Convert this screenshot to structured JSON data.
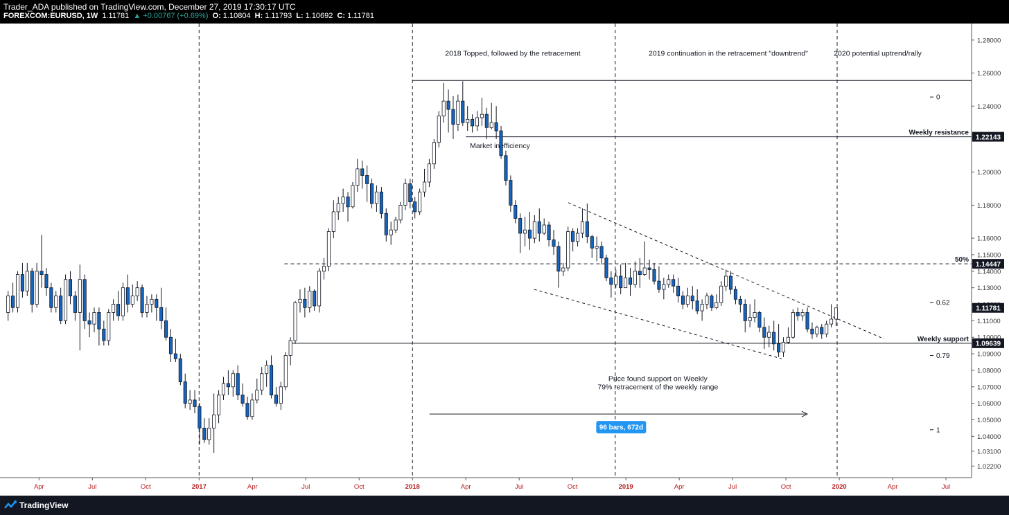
{
  "header": {
    "publisher_line": "Trader_ADA published on TradingView.com, December 27, 2019 17:30:17 UTC",
    "symbol": "FOREXCOM:EURUSD, 1W",
    "last": "1.11781",
    "change": "▲ +0.00767 (+0.69%)",
    "o_label": "O:",
    "o_value": "1.10804",
    "h_label": "H:",
    "h_value": "1.11793",
    "l_label": "L:",
    "l_value": "1.10692",
    "c_label": "C:",
    "c_value": "1.11781"
  },
  "footer": {
    "brand": "TradingView"
  },
  "chart_data": {
    "type": "candlestick",
    "symbol": "FOREXCOM:EURUSD",
    "timeframe": "1W",
    "ylim": [
      1.015,
      1.29
    ],
    "y_ticks": [
      "1.02200",
      "1.03100",
      "1.04000",
      "1.05000",
      "1.06000",
      "1.07000",
      "1.08000",
      "1.09000",
      "1.10000",
      "1.11000",
      "1.12000",
      "1.13000",
      "1.14000",
      "1.15000",
      "1.16000",
      "1.18000",
      "1.20000",
      "1.22000",
      "1.24000",
      "1.26000",
      "1.28000"
    ],
    "x_ticks": [
      {
        "label": "Apr",
        "t": 2016.25,
        "bold": false
      },
      {
        "label": "Jul",
        "t": 2016.5,
        "bold": false
      },
      {
        "label": "Oct",
        "t": 2016.75,
        "bold": false
      },
      {
        "label": "2017",
        "t": 2017.0,
        "bold": true
      },
      {
        "label": "Apr",
        "t": 2017.25,
        "bold": false
      },
      {
        "label": "Jul",
        "t": 2017.5,
        "bold": false
      },
      {
        "label": "Oct",
        "t": 2017.75,
        "bold": false
      },
      {
        "label": "2018",
        "t": 2018.0,
        "bold": true
      },
      {
        "label": "Apr",
        "t": 2018.25,
        "bold": false
      },
      {
        "label": "Jul",
        "t": 2018.5,
        "bold": false
      },
      {
        "label": "Oct",
        "t": 2018.75,
        "bold": false
      },
      {
        "label": "2019",
        "t": 2019.0,
        "bold": true
      },
      {
        "label": "Apr",
        "t": 2019.25,
        "bold": false
      },
      {
        "label": "Jul",
        "t": 2019.5,
        "bold": false
      },
      {
        "label": "Oct",
        "t": 2019.75,
        "bold": false
      },
      {
        "label": "2020",
        "t": 2020.0,
        "bold": true
      },
      {
        "label": "Apr",
        "t": 2020.25,
        "bold": false
      },
      {
        "label": "Jul",
        "t": 2020.5,
        "bold": false
      }
    ],
    "price_badges": [
      {
        "label": "1.22143",
        "value": 1.22143
      },
      {
        "label": "1.14447",
        "value": 1.14447
      },
      {
        "label": "1.11781",
        "value": 1.11781
      },
      {
        "label": "1.09639",
        "value": 1.09639
      }
    ],
    "horizontal_levels": [
      {
        "value": 1.2555,
        "t_from": 2018.0,
        "t_to": 2020.5,
        "style": "solid"
      },
      {
        "value": 1.22143,
        "t_from": 2018.25,
        "t_to": 2020.5,
        "style": "solid",
        "label": "Weekly resistance"
      },
      {
        "value": 1.14447,
        "t_from": 2017.4,
        "t_to": 2020.5,
        "style": "dashed",
        "label": "50%"
      },
      {
        "value": 1.09639,
        "t_from": 2017.43,
        "t_to": 2020.5,
        "style": "solid",
        "label": "Weekly support"
      }
    ],
    "vertical_markers": [
      2017.0,
      2018.0,
      2018.95,
      2019.99
    ],
    "channel_lines": [
      {
        "from": [
          2018.73,
          1.1815
        ],
        "to": [
          2020.21,
          1.099
        ]
      },
      {
        "from": [
          2018.57,
          1.129
        ],
        "to": [
          2019.73,
          1.087
        ]
      }
    ],
    "fib_labels": [
      {
        "label": "0",
        "value": 1.2455
      },
      {
        "label": "0.62",
        "value": 1.121
      },
      {
        "label": "0.79",
        "value": 1.089
      },
      {
        "label": "1",
        "value": 1.044
      }
    ],
    "annotations": [
      {
        "text": "2018 Topped, followed by the retracement",
        "t": 2018.47,
        "value": 1.2705
      },
      {
        "text": "2019 continuation in the retracement \"downtrend\"",
        "t": 2019.48,
        "value": 1.2705
      },
      {
        "text": "2020 potential uptrend/rally",
        "t": 2020.18,
        "value": 1.2705
      },
      {
        "text": "Market inefficiency",
        "t": 2018.41,
        "value": 1.2145
      },
      {
        "text": "Price found support on Weekly",
        "t": 2019.15,
        "value": 1.0735
      },
      {
        "text": "79% retracement of the weekly range",
        "t": 2019.15,
        "value": 1.0685
      }
    ],
    "measure": {
      "from": [
        2018.08,
        1.0535
      ],
      "to": [
        2019.85,
        1.0535
      ],
      "label": "96 bars, 672d"
    },
    "candles": [
      [
        1.115,
        1.125,
        1.11,
        1.128
      ],
      [
        1.125,
        1.118,
        1.115,
        1.133
      ],
      [
        1.118,
        1.138,
        1.115,
        1.14
      ],
      [
        1.138,
        1.128,
        1.124,
        1.145
      ],
      [
        1.128,
        1.14,
        1.125,
        1.145
      ],
      [
        1.14,
        1.12,
        1.115,
        1.142
      ],
      [
        1.12,
        1.14,
        1.118,
        1.145
      ],
      [
        1.14,
        1.138,
        1.13,
        1.162
      ],
      [
        1.138,
        1.13,
        1.125,
        1.142
      ],
      [
        1.13,
        1.118,
        1.115,
        1.133
      ],
      [
        1.118,
        1.125,
        1.115,
        1.128
      ],
      [
        1.125,
        1.11,
        1.108,
        1.13
      ],
      [
        1.11,
        1.135,
        1.108,
        1.138
      ],
      [
        1.135,
        1.125,
        1.12,
        1.14
      ],
      [
        1.125,
        1.115,
        1.11,
        1.128
      ],
      [
        1.115,
        1.135,
        1.092,
        1.144
      ],
      [
        1.135,
        1.11,
        1.105,
        1.138
      ],
      [
        1.11,
        1.108,
        1.1,
        1.115
      ],
      [
        1.108,
        1.115,
        1.103,
        1.118
      ],
      [
        1.115,
        1.105,
        1.095,
        1.118
      ],
      [
        1.105,
        1.098,
        1.095,
        1.11
      ],
      [
        1.098,
        1.115,
        1.095,
        1.117
      ],
      [
        1.115,
        1.12,
        1.11,
        1.123
      ],
      [
        1.12,
        1.113,
        1.11,
        1.128
      ],
      [
        1.113,
        1.13,
        1.11,
        1.133
      ],
      [
        1.13,
        1.12,
        1.115,
        1.138
      ],
      [
        1.12,
        1.125,
        1.118,
        1.132
      ],
      [
        1.125,
        1.13,
        1.122,
        1.134
      ],
      [
        1.13,
        1.115,
        1.112,
        1.132
      ],
      [
        1.115,
        1.12,
        1.112,
        1.125
      ],
      [
        1.12,
        1.123,
        1.115,
        1.126
      ],
      [
        1.123,
        1.118,
        1.11,
        1.126
      ],
      [
        1.118,
        1.11,
        1.105,
        1.13
      ],
      [
        1.11,
        1.1,
        1.098,
        1.118
      ],
      [
        1.1,
        1.09,
        1.085,
        1.105
      ],
      [
        1.09,
        1.087,
        1.085,
        1.099
      ],
      [
        1.087,
        1.073,
        1.071,
        1.09
      ],
      [
        1.073,
        1.06,
        1.057,
        1.078
      ],
      [
        1.06,
        1.062,
        1.056,
        1.068
      ],
      [
        1.062,
        1.058,
        1.054,
        1.068
      ],
      [
        1.058,
        1.045,
        1.035,
        1.06
      ],
      [
        1.045,
        1.038,
        1.036,
        1.051
      ],
      [
        1.038,
        1.045,
        1.035,
        1.051
      ],
      [
        1.045,
        1.053,
        1.03,
        1.066
      ],
      [
        1.053,
        1.065,
        1.048,
        1.068
      ],
      [
        1.065,
        1.072,
        1.062,
        1.076
      ],
      [
        1.072,
        1.07,
        1.065,
        1.08
      ],
      [
        1.07,
        1.078,
        1.064,
        1.08
      ],
      [
        1.078,
        1.065,
        1.062,
        1.083
      ],
      [
        1.065,
        1.06,
        1.058,
        1.072
      ],
      [
        1.06,
        1.052,
        1.05,
        1.064
      ],
      [
        1.052,
        1.062,
        1.05,
        1.066
      ],
      [
        1.062,
        1.068,
        1.06,
        1.075
      ],
      [
        1.068,
        1.078,
        1.065,
        1.082
      ],
      [
        1.078,
        1.083,
        1.07,
        1.086
      ],
      [
        1.083,
        1.065,
        1.063,
        1.089
      ],
      [
        1.065,
        1.06,
        1.058,
        1.07
      ],
      [
        1.06,
        1.07,
        1.056,
        1.073
      ],
      [
        1.07,
        1.089,
        1.068,
        1.091
      ],
      [
        1.089,
        1.098,
        1.083,
        1.1
      ],
      [
        1.098,
        1.121,
        1.096,
        1.122
      ],
      [
        1.121,
        1.123,
        1.115,
        1.129
      ],
      [
        1.123,
        1.118,
        1.112,
        1.13
      ],
      [
        1.118,
        1.128,
        1.115,
        1.131
      ],
      [
        1.128,
        1.119,
        1.116,
        1.129
      ],
      [
        1.119,
        1.14,
        1.115,
        1.142
      ],
      [
        1.14,
        1.143,
        1.135,
        1.148
      ],
      [
        1.143,
        1.164,
        1.14,
        1.166
      ],
      [
        1.164,
        1.176,
        1.16,
        1.183
      ],
      [
        1.176,
        1.181,
        1.171,
        1.185
      ],
      [
        1.181,
        1.185,
        1.176,
        1.19
      ],
      [
        1.185,
        1.179,
        1.17,
        1.188
      ],
      [
        1.179,
        1.192,
        1.178,
        1.194
      ],
      [
        1.192,
        1.202,
        1.188,
        1.208
      ],
      [
        1.202,
        1.198,
        1.19,
        1.207
      ],
      [
        1.198,
        1.193,
        1.182,
        1.204
      ],
      [
        1.193,
        1.181,
        1.178,
        1.196
      ],
      [
        1.181,
        1.188,
        1.176,
        1.192
      ],
      [
        1.188,
        1.175,
        1.172,
        1.191
      ],
      [
        1.175,
        1.162,
        1.158,
        1.178
      ],
      [
        1.162,
        1.165,
        1.156,
        1.17
      ],
      [
        1.165,
        1.171,
        1.163,
        1.173
      ],
      [
        1.171,
        1.18,
        1.169,
        1.182
      ],
      [
        1.18,
        1.193,
        1.177,
        1.196
      ],
      [
        1.193,
        1.182,
        1.178,
        1.196
      ],
      [
        1.182,
        1.176,
        1.172,
        1.185
      ],
      [
        1.176,
        1.188,
        1.174,
        1.19
      ],
      [
        1.188,
        1.194,
        1.185,
        1.202
      ],
      [
        1.194,
        1.205,
        1.191,
        1.208
      ],
      [
        1.205,
        1.218,
        1.202,
        1.22
      ],
      [
        1.218,
        1.234,
        1.215,
        1.237
      ],
      [
        1.234,
        1.243,
        1.23,
        1.254
      ],
      [
        1.243,
        1.238,
        1.224,
        1.25
      ],
      [
        1.238,
        1.229,
        1.22,
        1.246
      ],
      [
        1.229,
        1.243,
        1.225,
        1.247
      ],
      [
        1.243,
        1.23,
        1.228,
        1.255
      ],
      [
        1.23,
        1.232,
        1.225,
        1.24
      ],
      [
        1.232,
        1.228,
        1.224,
        1.235
      ],
      [
        1.228,
        1.233,
        1.225,
        1.237
      ],
      [
        1.233,
        1.235,
        1.228,
        1.245
      ],
      [
        1.235,
        1.227,
        1.22,
        1.239
      ],
      [
        1.227,
        1.23,
        1.226,
        1.242
      ],
      [
        1.23,
        1.225,
        1.22,
        1.24
      ],
      [
        1.225,
        1.21,
        1.208,
        1.228
      ],
      [
        1.21,
        1.195,
        1.192,
        1.213
      ],
      [
        1.195,
        1.18,
        1.176,
        1.198
      ],
      [
        1.18,
        1.172,
        1.169,
        1.183
      ],
      [
        1.172,
        1.163,
        1.151,
        1.175
      ],
      [
        1.163,
        1.165,
        1.155,
        1.173
      ],
      [
        1.165,
        1.16,
        1.153,
        1.176
      ],
      [
        1.16,
        1.17,
        1.157,
        1.174
      ],
      [
        1.17,
        1.163,
        1.158,
        1.178
      ],
      [
        1.163,
        1.168,
        1.162,
        1.172
      ],
      [
        1.168,
        1.159,
        1.155,
        1.17
      ],
      [
        1.159,
        1.155,
        1.15,
        1.165
      ],
      [
        1.155,
        1.14,
        1.13,
        1.158
      ],
      [
        1.14,
        1.142,
        1.137,
        1.145
      ],
      [
        1.142,
        1.164,
        1.14,
        1.167
      ],
      [
        1.164,
        1.158,
        1.152,
        1.166
      ],
      [
        1.158,
        1.163,
        1.155,
        1.166
      ],
      [
        1.163,
        1.17,
        1.16,
        1.178
      ],
      [
        1.17,
        1.161,
        1.157,
        1.181
      ],
      [
        1.161,
        1.154,
        1.148,
        1.162
      ],
      [
        1.154,
        1.155,
        1.146,
        1.161
      ],
      [
        1.155,
        1.148,
        1.144,
        1.158
      ],
      [
        1.148,
        1.136,
        1.134,
        1.15
      ],
      [
        1.136,
        1.132,
        1.124,
        1.14
      ],
      [
        1.132,
        1.137,
        1.13,
        1.141
      ],
      [
        1.137,
        1.13,
        1.126,
        1.144
      ],
      [
        1.13,
        1.136,
        1.13,
        1.145
      ],
      [
        1.136,
        1.132,
        1.125,
        1.142
      ],
      [
        1.132,
        1.14,
        1.13,
        1.146
      ],
      [
        1.14,
        1.138,
        1.13,
        1.148
      ],
      [
        1.138,
        1.142,
        1.137,
        1.158
      ],
      [
        1.142,
        1.141,
        1.135,
        1.147
      ],
      [
        1.141,
        1.134,
        1.132,
        1.145
      ],
      [
        1.134,
        1.129,
        1.127,
        1.143
      ],
      [
        1.129,
        1.132,
        1.123,
        1.136
      ],
      [
        1.132,
        1.135,
        1.13,
        1.138
      ],
      [
        1.135,
        1.131,
        1.127,
        1.138
      ],
      [
        1.131,
        1.125,
        1.121,
        1.136
      ],
      [
        1.125,
        1.12,
        1.117,
        1.128
      ],
      [
        1.12,
        1.125,
        1.118,
        1.13
      ],
      [
        1.125,
        1.122,
        1.117,
        1.131
      ],
      [
        1.122,
        1.116,
        1.114,
        1.129
      ],
      [
        1.116,
        1.12,
        1.11,
        1.123
      ],
      [
        1.12,
        1.125,
        1.117,
        1.127
      ],
      [
        1.125,
        1.118,
        1.116,
        1.126
      ],
      [
        1.118,
        1.121,
        1.117,
        1.126
      ],
      [
        1.121,
        1.131,
        1.119,
        1.134
      ],
      [
        1.131,
        1.137,
        1.128,
        1.141
      ],
      [
        1.137,
        1.129,
        1.126,
        1.14
      ],
      [
        1.129,
        1.123,
        1.12,
        1.131
      ],
      [
        1.123,
        1.12,
        1.115,
        1.125
      ],
      [
        1.12,
        1.11,
        1.103,
        1.123
      ],
      [
        1.11,
        1.112,
        1.106,
        1.12
      ],
      [
        1.112,
        1.115,
        1.109,
        1.123
      ],
      [
        1.115,
        1.106,
        1.103,
        1.116
      ],
      [
        1.106,
        1.1,
        1.093,
        1.112
      ],
      [
        1.1,
        1.103,
        1.094,
        1.107
      ],
      [
        1.103,
        1.096,
        1.092,
        1.11
      ],
      [
        1.096,
        1.091,
        1.088,
        1.108
      ],
      [
        1.091,
        1.097,
        1.088,
        1.1
      ],
      [
        1.097,
        1.1,
        1.096,
        1.106
      ],
      [
        1.1,
        1.115,
        1.099,
        1.117
      ],
      [
        1.115,
        1.113,
        1.11,
        1.118
      ],
      [
        1.113,
        1.115,
        1.11,
        1.117
      ],
      [
        1.115,
        1.105,
        1.103,
        1.118
      ],
      [
        1.105,
        1.102,
        1.099,
        1.109
      ],
      [
        1.102,
        1.106,
        1.1,
        1.107
      ],
      [
        1.106,
        1.102,
        1.099,
        1.108
      ],
      [
        1.102,
        1.108,
        1.1,
        1.11
      ],
      [
        1.108,
        1.111,
        1.106,
        1.12
      ],
      [
        1.111,
        1.1178,
        1.1069,
        1.1179
      ]
    ]
  }
}
